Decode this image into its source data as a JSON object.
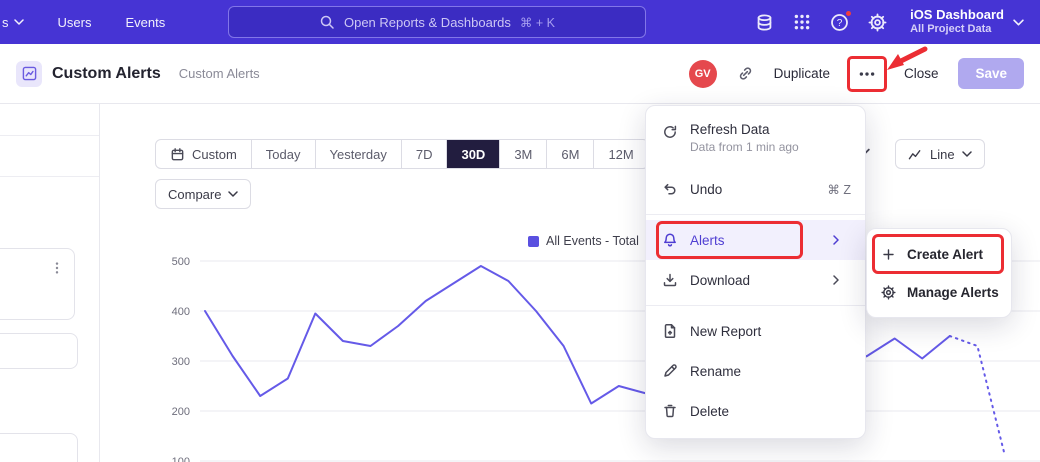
{
  "topnav": {
    "truncated_item": "s",
    "items": [
      "Users",
      "Events"
    ],
    "search": {
      "placeholder": "Open Reports & Dashboards",
      "shortcut": "⌘ + K"
    },
    "project": {
      "title": "iOS Dashboard",
      "subtitle": "All Project Data"
    }
  },
  "header": {
    "title": "Custom Alerts",
    "breadcrumb": "Custom Alerts",
    "avatar_initials": "GV",
    "duplicate_label": "Duplicate",
    "close_label": "Close",
    "save_label": "Save"
  },
  "toolbar": {
    "date_ranges": [
      "Custom",
      "Today",
      "Yesterday",
      "7D",
      "30D",
      "3M",
      "6M",
      "12M"
    ],
    "selected_range": "30D",
    "compare_label": "Compare",
    "chart_type_label": "Line"
  },
  "legend": {
    "label": "All Events - Total"
  },
  "menu": {
    "refresh": {
      "label": "Refresh Data",
      "sub": "Data from 1 min ago"
    },
    "undo": {
      "label": "Undo",
      "shortcut": "⌘ Z"
    },
    "alerts": {
      "label": "Alerts"
    },
    "download": {
      "label": "Download"
    },
    "new_report": {
      "label": "New Report"
    },
    "rename": {
      "label": "Rename"
    },
    "delete": {
      "label": "Delete"
    }
  },
  "submenu": {
    "create_alert": "Create Alert",
    "manage_alerts": "Manage Alerts"
  },
  "colors": {
    "topnav_bg": "#4634d4",
    "accent_purple": "#4f3ed2",
    "line_color": "#655ae8",
    "annotation_red": "#ec2d33",
    "avatar_red": "#e5484d",
    "selected_segment_bg": "#221d3f"
  },
  "chart_data": {
    "type": "line",
    "title": "",
    "xlabel": "",
    "ylabel": "",
    "ylim": [
      100,
      500
    ],
    "yticks": [
      500,
      400,
      300,
      200,
      100
    ],
    "grid": true,
    "legend_position": "top",
    "series": [
      {
        "name": "All Events - Total",
        "values": [
          400,
          310,
          230,
          265,
          395,
          340,
          330,
          370,
          420,
          455,
          490,
          460,
          400,
          330,
          215,
          250,
          235,
          270,
          255,
          290,
          270,
          300,
          320,
          290,
          310,
          345,
          305,
          350,
          330,
          110
        ],
        "dashed_from_index": 27
      }
    ]
  }
}
